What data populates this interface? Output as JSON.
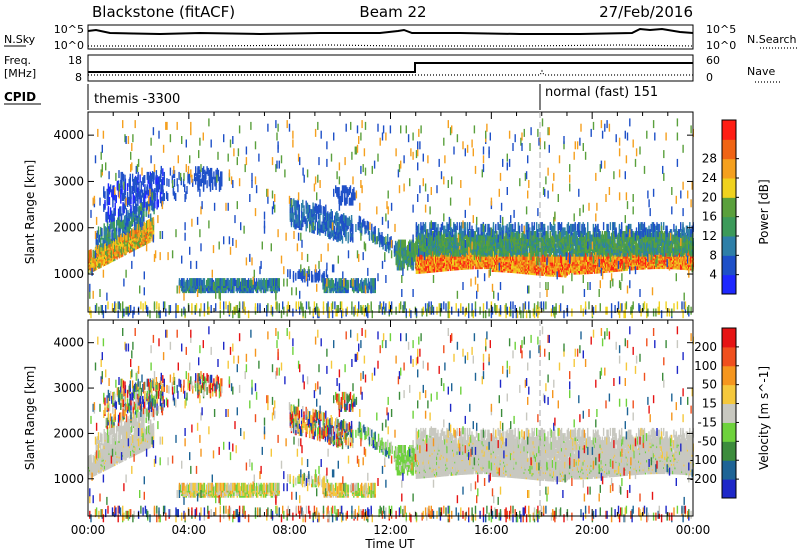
{
  "header": {
    "station": "Blackstone (fitACF)",
    "beam": "Beam 22",
    "date": "27/Feb/2016"
  },
  "sky_panel": {
    "left_label": "N.Sky",
    "right_label": "N.Search",
    "left_ticks": [
      "10^5",
      "10^0"
    ],
    "right_ticks": [
      "10^5",
      "10^0"
    ]
  },
  "freq_panel": {
    "left_label_line1": "Freq.",
    "left_label_line2": "[MHz]",
    "right_label": "Nave",
    "left_ticks": [
      "18",
      "8"
    ],
    "right_ticks": [
      "60",
      "0"
    ]
  },
  "cpid_panel": {
    "label": "CPID",
    "segments": [
      {
        "name": "themis -3300",
        "start_hour": 0
      },
      {
        "name": "normal (fast) 151",
        "start_hour": 18
      }
    ]
  },
  "x_axis": {
    "title": "Time UT",
    "ticks": [
      "00:00",
      "04:00",
      "08:00",
      "12:00",
      "16:00",
      "20:00",
      "00:00"
    ]
  },
  "chart_data": [
    {
      "type": "heatmap",
      "title": "Power",
      "ylabel": "Slant Range [km]",
      "xlabel": "Time UT",
      "xlim_hours": [
        0,
        24
      ],
      "ylim_km": [
        180,
        4500
      ],
      "y_ticks": [
        1000,
        2000,
        3000,
        4000
      ],
      "colorbar": {
        "label": "Power [dB]",
        "ticks": [
          "4",
          "8",
          "12",
          "16",
          "20",
          "24",
          "28"
        ],
        "colors": [
          "#1e28ff",
          "#1e50c8",
          "#2e7fa8",
          "#3c9a5a",
          "#5aa03c",
          "#f0d21e",
          "#f5a01e",
          "#f06414",
          "#ff1e14"
        ]
      },
      "features": [
        {
          "desc": "echo band",
          "hours": [
            0,
            2.5
          ],
          "range_km": [
            1200,
            2000
          ],
          "power_db": 24
        },
        {
          "desc": "scatter patch",
          "hours": [
            2,
            3.5
          ],
          "range_km": [
            2100,
            3000
          ],
          "power_db": 6
        },
        {
          "desc": "scatter band",
          "hours": [
            3.5,
            7.5
          ],
          "range_km": [
            700,
            1000
          ],
          "power_db": 10
        },
        {
          "desc": "scatter patch",
          "hours": [
            8,
            10.5
          ],
          "range_km": [
            1900,
            2800
          ],
          "power_db": 6
        },
        {
          "desc": "echo band",
          "hours": [
            13,
            24
          ],
          "range_km": [
            1100,
            2100
          ],
          "power_db": 22
        }
      ]
    },
    {
      "type": "heatmap",
      "title": "Velocity",
      "ylabel": "Slant Range [km]",
      "xlabel": "Time UT",
      "xlim_hours": [
        0,
        24
      ],
      "ylim_km": [
        180,
        4500
      ],
      "y_ticks": [
        1000,
        2000,
        3000,
        4000
      ],
      "colorbar": {
        "label": "Velocity [m s^-1]",
        "ticks": [
          "200",
          "100",
          "50",
          "15",
          "-15",
          "-50",
          "-100",
          "-200"
        ],
        "colors": [
          "#1e28c8",
          "#1e6496",
          "#3c8c3c",
          "#6ed23c",
          "#c8c8c0",
          "#f5c83c",
          "#f5961e",
          "#f0501e",
          "#e61414"
        ]
      }
    }
  ]
}
